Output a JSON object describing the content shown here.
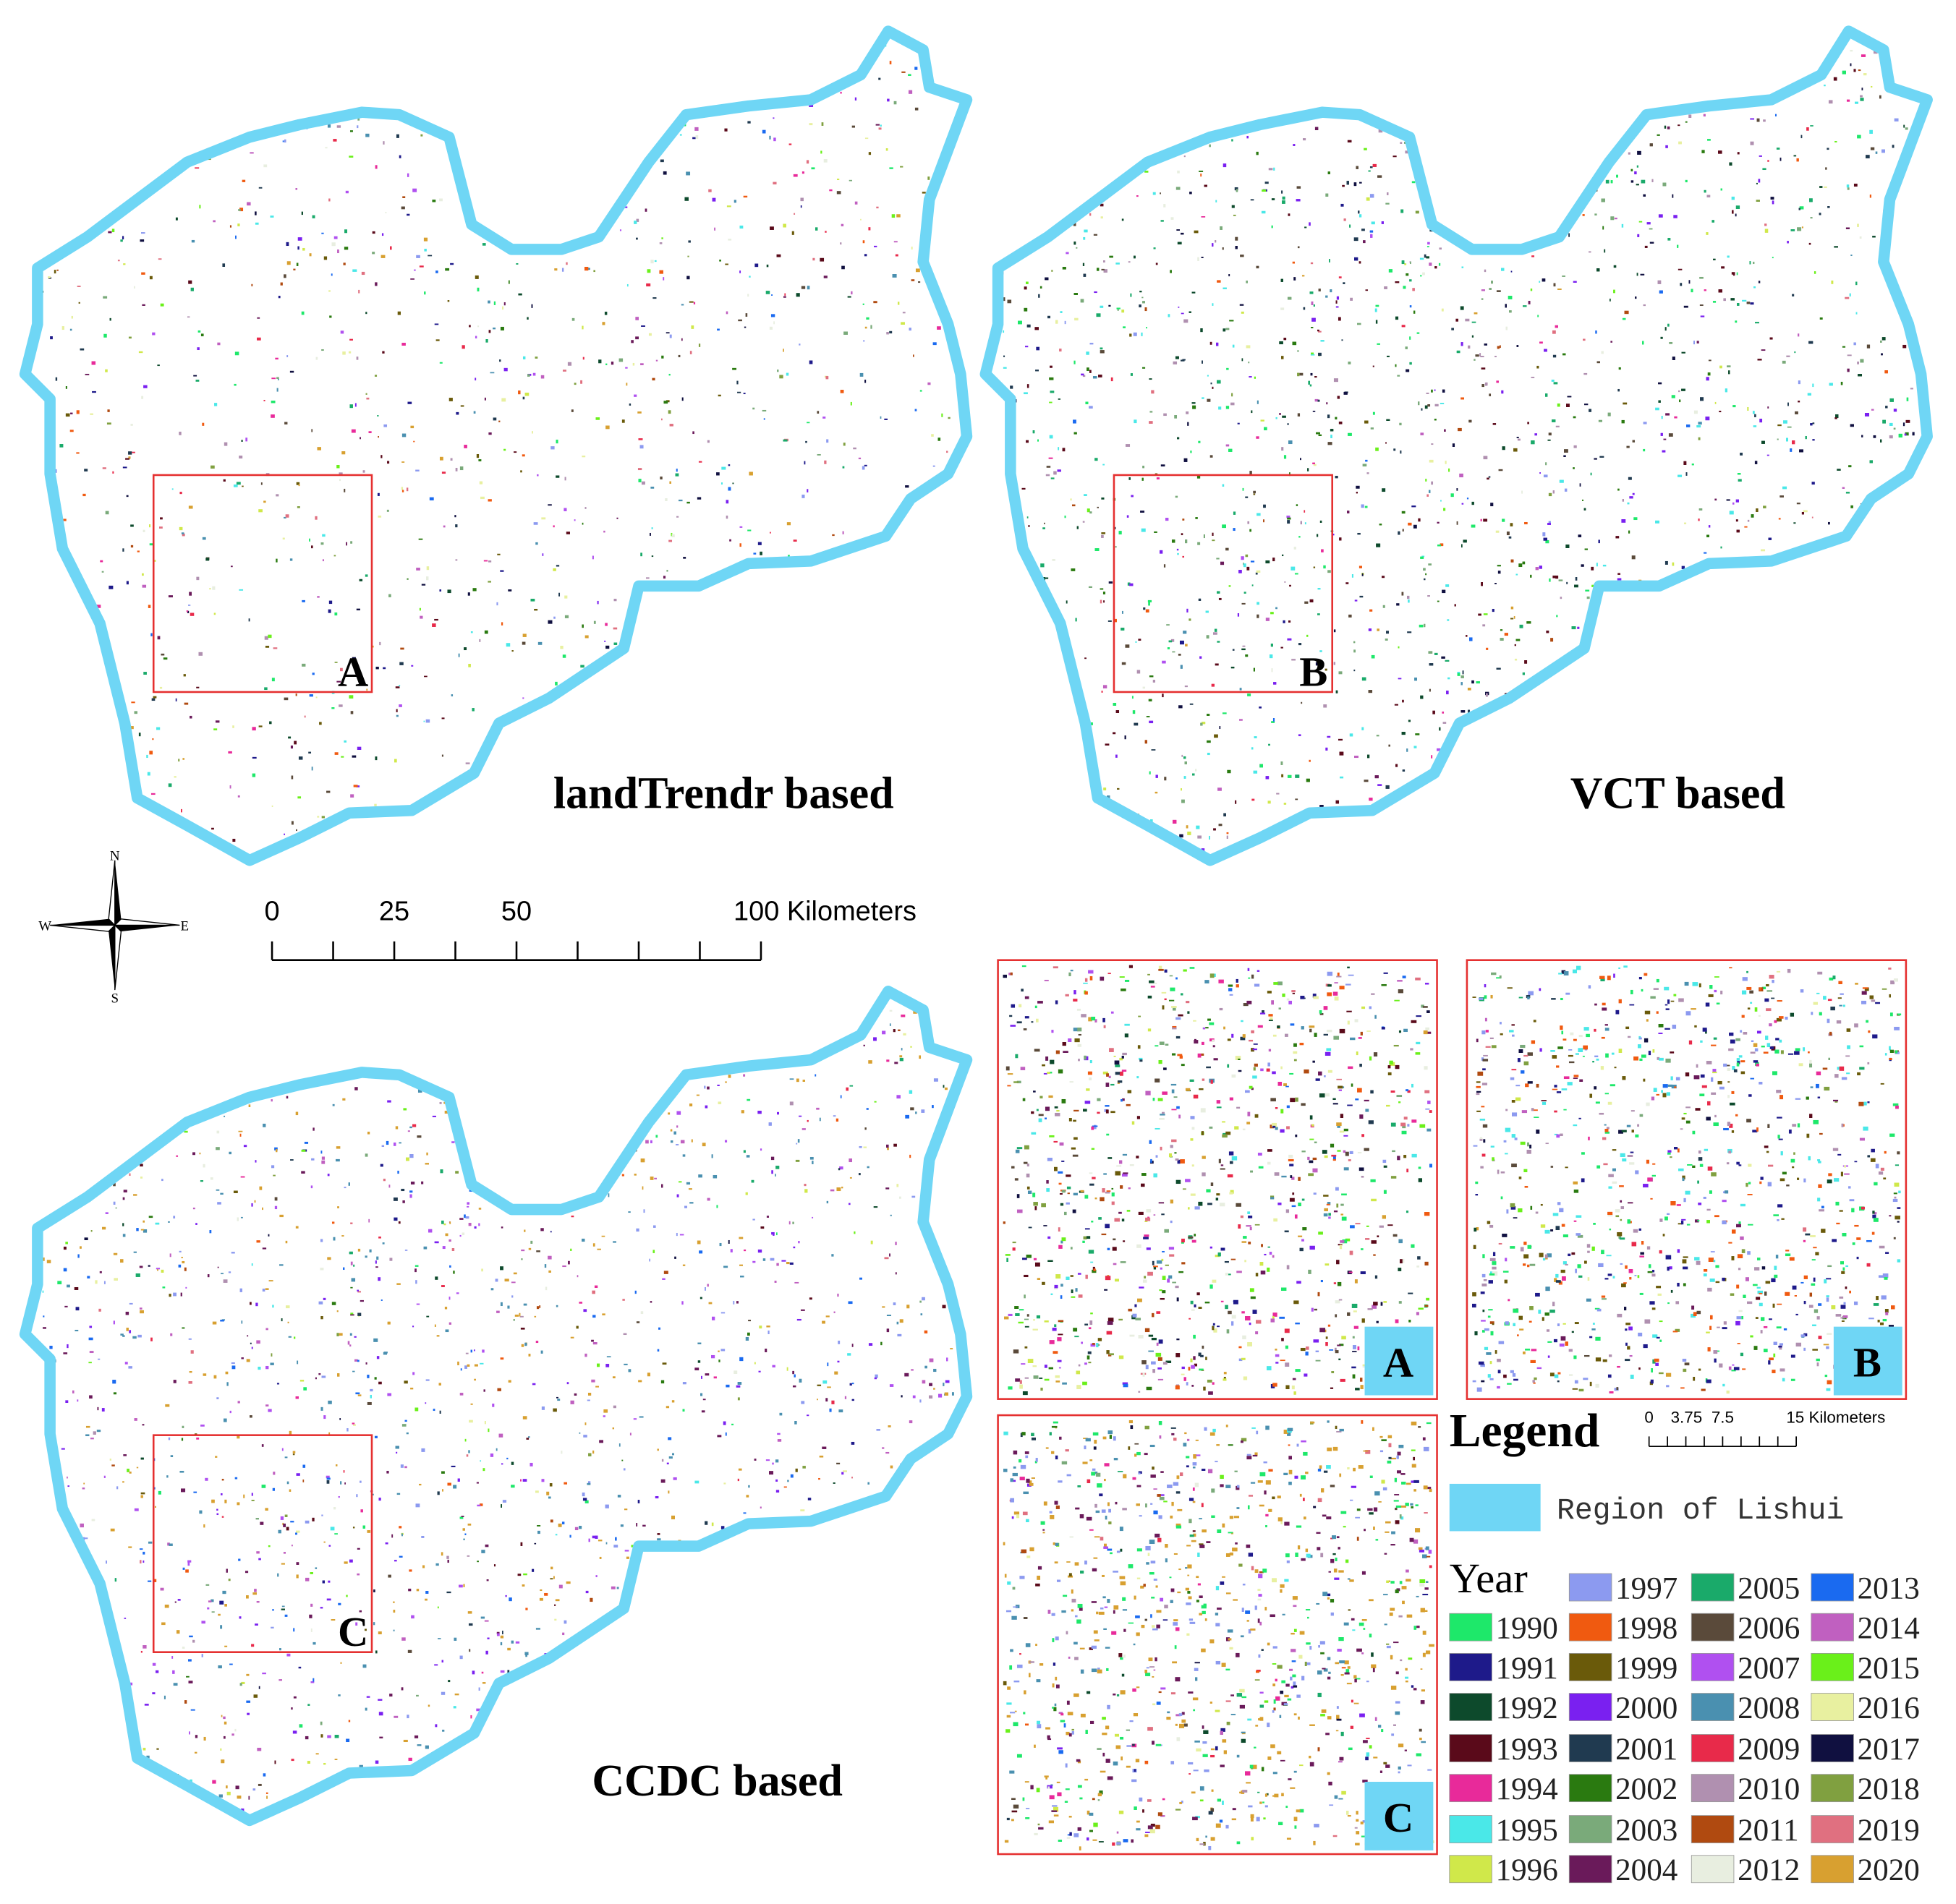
{
  "maps": [
    {
      "title": "landTrendr based",
      "box_label": "A"
    },
    {
      "title": "VCT based",
      "box_label": "B"
    },
    {
      "title": "CCDC based",
      "box_label": "C"
    }
  ],
  "compass": {
    "n": "N",
    "s": "S",
    "e": "E",
    "w": "W"
  },
  "scale_bar": {
    "labels": [
      "0",
      "25",
      "50",
      "100 Kilometers"
    ]
  },
  "insets": [
    {
      "label": "A"
    },
    {
      "label": "B"
    },
    {
      "label": "C"
    }
  ],
  "inset_scale": {
    "labels": [
      "0",
      "3.75",
      "7.5",
      "15 Kilometers"
    ]
  },
  "legend": {
    "title": "Legend",
    "region": {
      "label": "Region of Lishui",
      "color": "#6fd6f5"
    },
    "year_title": "Year",
    "years": [
      {
        "label": "1990",
        "color": "#1ee86a"
      },
      {
        "label": "1991",
        "color": "#1e1a8a"
      },
      {
        "label": "1992",
        "color": "#0d4a2c"
      },
      {
        "label": "1993",
        "color": "#5a0a1a"
      },
      {
        "label": "1994",
        "color": "#e82a9a"
      },
      {
        "label": "1995",
        "color": "#4ae8e8"
      },
      {
        "label": "1996",
        "color": "#d0e84a"
      },
      {
        "label": "1997",
        "color": "#8c9af0"
      },
      {
        "label": "1998",
        "color": "#f05a10"
      },
      {
        "label": "1999",
        "color": "#6a5a0a"
      },
      {
        "label": "2000",
        "color": "#7a20f0"
      },
      {
        "label": "2001",
        "color": "#203a50"
      },
      {
        "label": "2002",
        "color": "#2a7a10"
      },
      {
        "label": "2003",
        "color": "#7aaa7a"
      },
      {
        "label": "2004",
        "color": "#6a1a5a"
      },
      {
        "label": "2005",
        "color": "#1aaa6a"
      },
      {
        "label": "2006",
        "color": "#5a4a3a"
      },
      {
        "label": "2007",
        "color": "#b050f0"
      },
      {
        "label": "2008",
        "color": "#4a90b0"
      },
      {
        "label": "2009",
        "color": "#e82a4a"
      },
      {
        "label": "2010",
        "color": "#b090b0"
      },
      {
        "label": "2011",
        "color": "#b04a10"
      },
      {
        "label": "2012",
        "color": "#e8eee0"
      },
      {
        "label": "2013",
        "color": "#1a6af0"
      },
      {
        "label": "2014",
        "color": "#c060c0"
      },
      {
        "label": "2015",
        "color": "#6af01a"
      },
      {
        "label": "2016",
        "color": "#e8f0a0"
      },
      {
        "label": "2017",
        "color": "#101040"
      },
      {
        "label": "2018",
        "color": "#80a040"
      },
      {
        "label": "2019",
        "color": "#e07080"
      },
      {
        "label": "2020",
        "color": "#d8a030"
      }
    ]
  }
}
